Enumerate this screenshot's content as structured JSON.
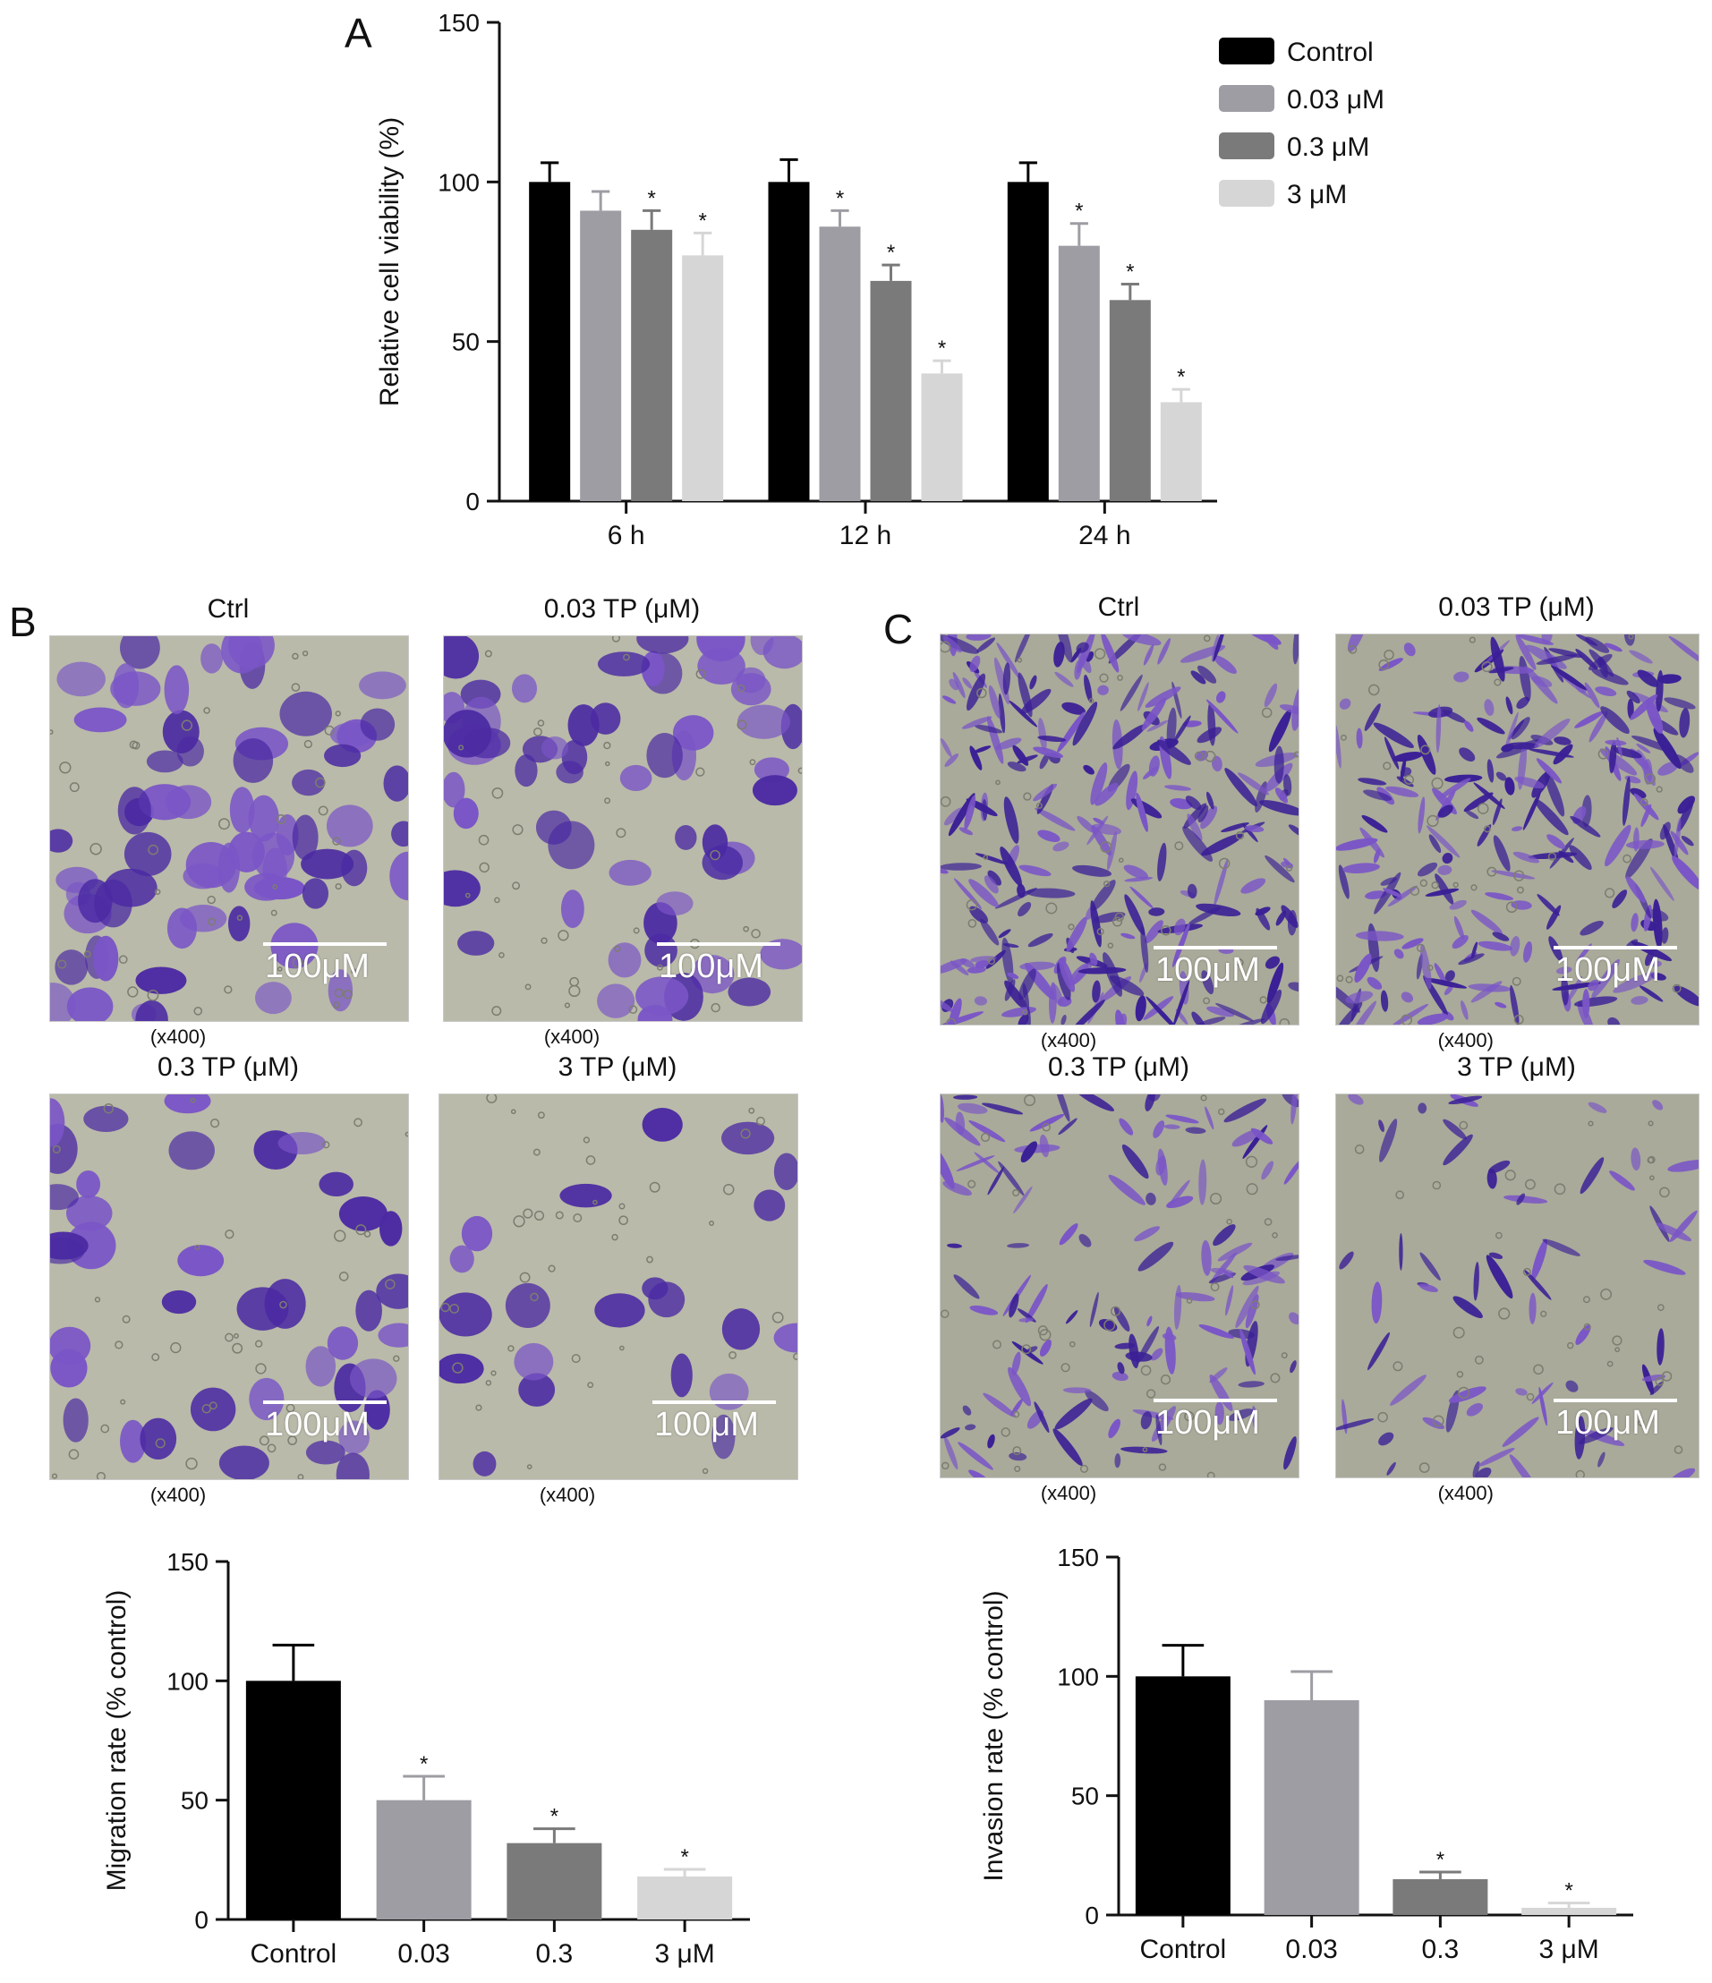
{
  "figure": {
    "panels": {
      "a": "A",
      "b": "B",
      "c": "C"
    },
    "migration_images": [
      {
        "title": "Ctrl",
        "magnification": "(x400)",
        "scale_label": "100μM",
        "density": 0.95
      },
      {
        "title": "0.03 TP (μM)",
        "magnification": "(x400)",
        "scale_label": "100μM",
        "density": 0.8
      },
      {
        "title": "0.3 TP (μM)",
        "magnification": "(x400)",
        "scale_label": "100μM",
        "density": 0.55
      },
      {
        "title": "3 TP (μM)",
        "magnification": "(x400)",
        "scale_label": "100μM",
        "density": 0.3
      }
    ],
    "invasion_images": [
      {
        "title": "Ctrl",
        "magnification": "(x400)",
        "scale_label": "100μM",
        "density": 1.0
      },
      {
        "title": "0.03 TP (μM)",
        "magnification": "(x400)",
        "scale_label": "100μM",
        "density": 0.95
      },
      {
        "title": "0.3 TP (μM)",
        "magnification": "(x400)",
        "scale_label": "100μM",
        "density": 0.5
      },
      {
        "title": "3 TP (μM)",
        "magnification": "(x400)",
        "scale_label": "100μM",
        "density": 0.25
      }
    ],
    "image_colors": {
      "background": "#b9baa9",
      "cell": "#4b2aa3",
      "cell_light": "#7a55c7",
      "invasion_background": "#a9aa9a",
      "invasion_cell": "#3a1f96"
    }
  },
  "chart_data": [
    {
      "type": "bar",
      "panel": "A",
      "categories": [
        "6 h",
        "12 h",
        "24 h"
      ],
      "series": [
        {
          "name": "Control",
          "color": "#000000",
          "values": [
            100,
            100,
            100
          ],
          "errors": [
            6,
            7,
            6
          ],
          "significant": [
            false,
            false,
            false
          ]
        },
        {
          "name": "0.03 μM",
          "color": "#9d9da3",
          "values": [
            91,
            86,
            80
          ],
          "errors": [
            6,
            5,
            7
          ],
          "significant": [
            false,
            true,
            true
          ]
        },
        {
          "name": "0.3 μM",
          "color": "#7a7a7a",
          "values": [
            85,
            69,
            63
          ],
          "errors": [
            6,
            5,
            5
          ],
          "significant": [
            true,
            true,
            true
          ]
        },
        {
          "name": "3 μM",
          "color": "#d6d6d6",
          "values": [
            77,
            40,
            31
          ],
          "errors": [
            7,
            4,
            4
          ],
          "significant": [
            true,
            true,
            true
          ]
        }
      ],
      "ylabel": "Relative cell viability (%)",
      "xlabel": "",
      "ylim": [
        0,
        150
      ],
      "yticks": [
        0,
        50,
        100,
        150
      ],
      "significance_marker": "*",
      "legend_position": "top-right",
      "grid": false
    },
    {
      "type": "bar",
      "panel": "B",
      "categories": [
        "Control",
        "0.03",
        "0.3",
        "3 μM"
      ],
      "values": [
        100,
        50,
        32,
        18
      ],
      "errors": [
        15,
        10,
        6,
        3
      ],
      "colors": [
        "#000000",
        "#9d9da3",
        "#7a7a7a",
        "#d6d6d6"
      ],
      "significant": [
        false,
        true,
        true,
        true
      ],
      "ylabel": "Migration rate (% control)",
      "xlabel": "",
      "ylim": [
        0,
        150
      ],
      "yticks": [
        0,
        50,
        100,
        150
      ],
      "significance_marker": "*",
      "grid": false
    },
    {
      "type": "bar",
      "panel": "C",
      "categories": [
        "Control",
        "0.03",
        "0.3",
        "3 μM"
      ],
      "values": [
        100,
        90,
        15,
        3
      ],
      "errors": [
        13,
        12,
        3,
        2
      ],
      "colors": [
        "#000000",
        "#9d9da3",
        "#7a7a7a",
        "#d6d6d6"
      ],
      "significant": [
        false,
        false,
        true,
        true
      ],
      "ylabel": "Invasion rate (% control)",
      "xlabel": "",
      "ylim": [
        0,
        150
      ],
      "yticks": [
        0,
        50,
        100,
        150
      ],
      "significance_marker": "*",
      "grid": false
    }
  ]
}
